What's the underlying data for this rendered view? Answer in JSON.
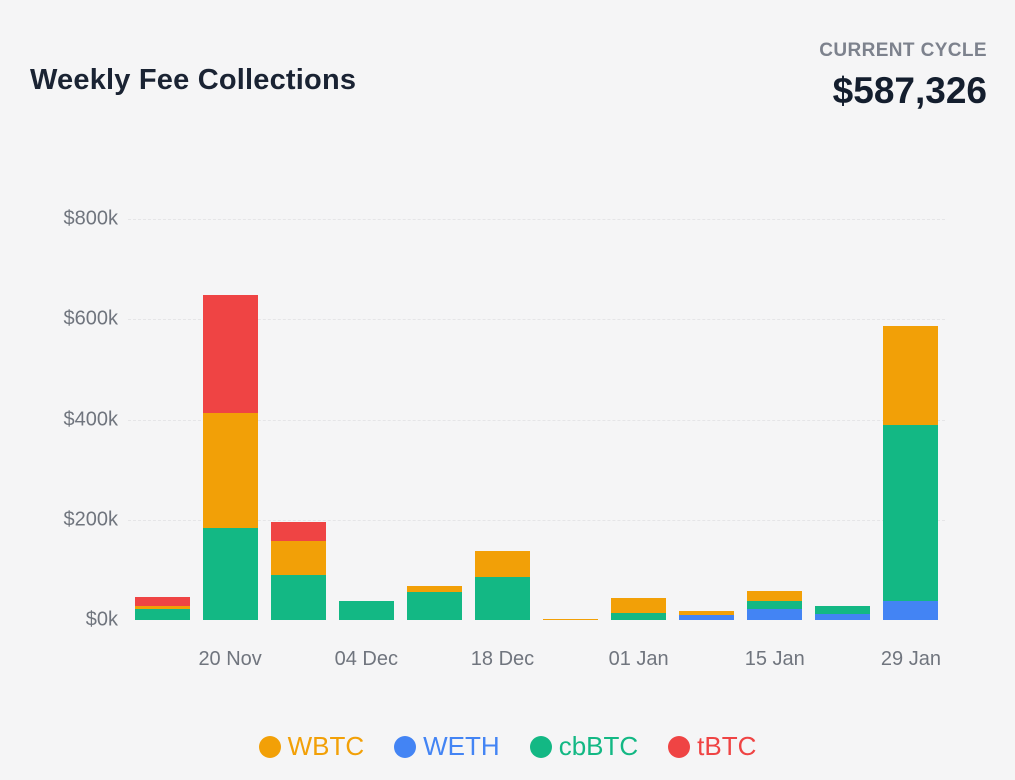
{
  "page": {
    "background": "#f5f5f6"
  },
  "header": {
    "title": "Weekly Fee Collections",
    "current_cycle_label": "CURRENT CYCLE",
    "current_cycle_value": "$587,326"
  },
  "chart_data": {
    "type": "bar",
    "stacked": true,
    "title": "Weekly Fee Collections",
    "values_unit": "thousand USD",
    "ylim": [
      0,
      800
    ],
    "y_ticks": [
      {
        "label": "$800k",
        "value": 800
      },
      {
        "label": "$600k",
        "value": 600
      },
      {
        "label": "$400k",
        "value": 400
      },
      {
        "label": "$200k",
        "value": 200
      },
      {
        "label": "$0k",
        "value": 0
      }
    ],
    "categories": [
      "",
      "20 Nov",
      "",
      "04 Dec",
      "",
      "18 Dec",
      "",
      "01 Jan",
      "",
      "15 Jan",
      "",
      "29 Jan"
    ],
    "stack_order_bottom_to_top": [
      "WETH",
      "cbBTC",
      "WBTC",
      "tBTC"
    ],
    "series": [
      {
        "name": "WBTC",
        "color": "#F2A007",
        "values": [
          6,
          230,
          67,
          0,
          12,
          52,
          2,
          30,
          8,
          21,
          0,
          197
        ]
      },
      {
        "name": "WETH",
        "color": "#4384F4",
        "values": [
          0,
          0,
          0,
          0,
          0,
          0,
          0,
          0,
          10,
          22,
          12,
          38
        ]
      },
      {
        "name": "cbBTC",
        "color": "#13B884",
        "values": [
          22,
          184,
          90,
          38,
          55,
          86,
          0,
          14,
          0,
          15,
          15,
          352
        ]
      },
      {
        "name": "tBTC",
        "color": "#EF4444",
        "values": [
          18,
          234,
          39,
          0,
          0,
          0,
          0,
          0,
          0,
          0,
          0,
          0
        ]
      }
    ],
    "grid": {
      "style": "dashed",
      "color": "#e5e5e7",
      "horizontal_only": true
    },
    "legend": {
      "position": "bottom",
      "items": [
        "WBTC",
        "WETH",
        "cbBTC",
        "tBTC"
      ]
    }
  }
}
